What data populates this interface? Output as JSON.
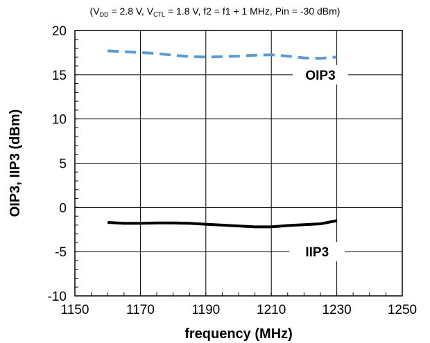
{
  "chart_data": {
    "type": "line",
    "subtitle": {
      "vdd_label": "V",
      "vdd_sub": "DD",
      "vdd_value": " = 2.8 V, ",
      "vctl_label": "V",
      "vctl_sub": "CTL",
      "vctl_value": " = 1.8 V, f2 = f1 + 1 MHz, Pin = -30 dBm)",
      "open_paren": "("
    },
    "xlabel": "frequency (MHz)",
    "ylabel": "OIP3, IIP3 (dBm)",
    "xlim": [
      1150,
      1250
    ],
    "ylim": [
      -10,
      20
    ],
    "xticks": [
      1150,
      1170,
      1190,
      1210,
      1230,
      1250
    ],
    "yticks": [
      -10,
      -5,
      0,
      5,
      10,
      15,
      20
    ],
    "grid": true,
    "series": [
      {
        "name": "OIP3",
        "style": "dashed",
        "color": "#5b9bd5",
        "x": [
          1160,
          1165,
          1170,
          1175,
          1180,
          1185,
          1190,
          1195,
          1200,
          1205,
          1210,
          1215,
          1220,
          1225,
          1230
        ],
        "y": [
          17.7,
          17.6,
          17.5,
          17.4,
          17.2,
          17.05,
          17.0,
          17.05,
          17.1,
          17.2,
          17.25,
          17.1,
          16.9,
          16.85,
          17.0
        ]
      },
      {
        "name": "IIP3",
        "style": "solid",
        "color": "#000000",
        "x": [
          1160,
          1165,
          1170,
          1175,
          1180,
          1185,
          1190,
          1195,
          1200,
          1205,
          1210,
          1215,
          1220,
          1225,
          1230
        ],
        "y": [
          -1.7,
          -1.8,
          -1.8,
          -1.75,
          -1.75,
          -1.8,
          -1.9,
          -2.0,
          -2.1,
          -2.2,
          -2.2,
          -2.05,
          -1.95,
          -1.85,
          -1.5
        ]
      }
    ],
    "annotations": [
      {
        "text": "OIP3",
        "series": "OIP3",
        "x": 1225,
        "y": 15
      },
      {
        "text": "IIP3",
        "series": "IIP3",
        "x": 1224,
        "y": -5
      }
    ]
  }
}
